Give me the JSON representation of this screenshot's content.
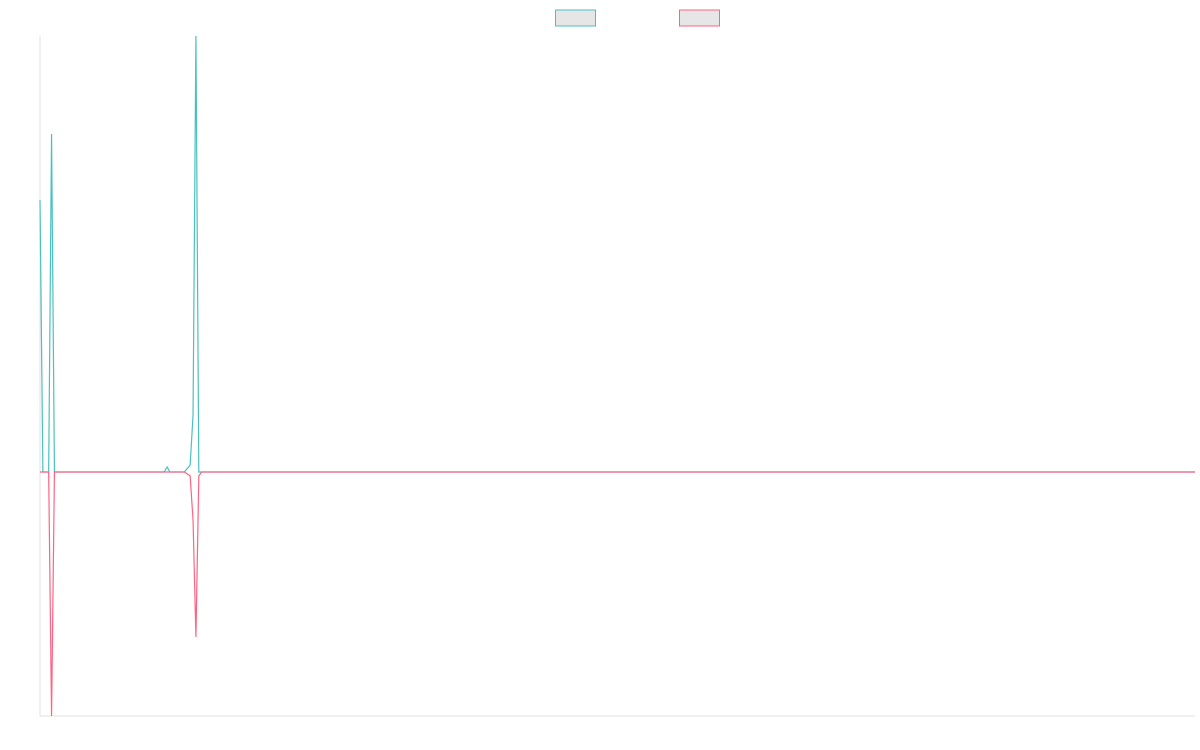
{
  "chart_data": {
    "type": "line",
    "x": [
      0,
      1,
      3,
      4,
      5,
      43,
      44,
      45,
      50,
      52,
      53,
      54,
      55,
      56,
      400
    ],
    "series": [
      {
        "color": "#4bc0c0",
        "values": [
          272,
          0,
          0,
          338,
          0,
          0,
          5,
          0,
          0,
          7,
          57,
          436,
          0,
          0,
          0
        ]
      },
      {
        "color": "#ff6384",
        "values": [
          0,
          0,
          0,
          -244,
          0,
          0,
          0,
          0,
          0,
          -4,
          -48,
          -165,
          -4,
          0,
          0
        ]
      }
    ],
    "xlim": [
      0,
      400
    ],
    "ylim": [
      -244,
      436
    ],
    "legend": "top"
  }
}
